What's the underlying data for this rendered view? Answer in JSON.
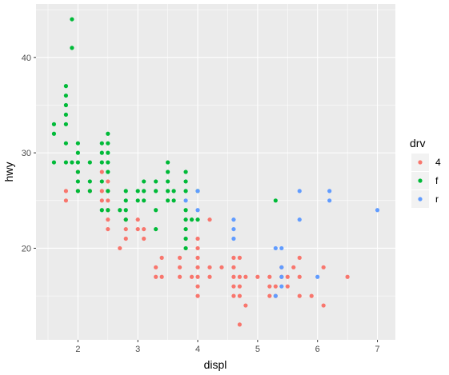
{
  "chart_data": {
    "type": "scatter",
    "xlabel": "displ",
    "ylabel": "hwy",
    "xlim": [
      1.3,
      7.3
    ],
    "ylim": [
      10.4,
      45.6
    ],
    "x_ticks": [
      2,
      3,
      4,
      5,
      6,
      7
    ],
    "y_ticks": [
      20,
      30,
      40
    ],
    "grid": true,
    "legend": {
      "title": "drv",
      "position": "right"
    },
    "series": [
      {
        "name": "4",
        "color": "#F8766D",
        "points": [
          [
            1.8,
            26
          ],
          [
            1.8,
            25
          ],
          [
            2.0,
            28
          ],
          [
            2.0,
            26
          ],
          [
            2.2,
            26
          ],
          [
            2.4,
            26
          ],
          [
            2.4,
            25
          ],
          [
            2.4,
            28
          ],
          [
            2.5,
            27
          ],
          [
            2.5,
            26
          ],
          [
            2.5,
            25
          ],
          [
            2.5,
            24
          ],
          [
            2.5,
            23
          ],
          [
            2.5,
            22
          ],
          [
            2.7,
            20
          ],
          [
            2.8,
            23
          ],
          [
            2.8,
            22
          ],
          [
            2.8,
            21
          ],
          [
            3.0,
            23
          ],
          [
            3.0,
            22
          ],
          [
            3.1,
            21
          ],
          [
            3.1,
            22
          ],
          [
            3.3,
            17
          ],
          [
            3.3,
            18
          ],
          [
            3.4,
            19
          ],
          [
            3.4,
            17
          ],
          [
            3.7,
            19
          ],
          [
            3.7,
            18
          ],
          [
            3.9,
            17
          ],
          [
            4.0,
            21
          ],
          [
            4.0,
            20
          ],
          [
            4.0,
            19
          ],
          [
            4.0,
            18
          ],
          [
            4.0,
            17
          ],
          [
            4.0,
            15
          ],
          [
            4.2,
            23
          ],
          [
            4.2,
            18
          ],
          [
            4.4,
            18
          ],
          [
            4.6,
            19
          ],
          [
            4.6,
            17
          ],
          [
            4.6,
            16
          ],
          [
            4.7,
            19
          ],
          [
            4.7,
            17
          ],
          [
            4.7,
            16
          ],
          [
            4.7,
            15
          ],
          [
            4.7,
            12
          ],
          [
            4.6,
            15
          ],
          [
            4.8,
            17
          ],
          [
            4.8,
            14
          ],
          [
            5.0,
            17
          ],
          [
            5.2,
            17
          ],
          [
            5.2,
            16
          ],
          [
            5.3,
            15
          ],
          [
            5.3,
            16
          ],
          [
            5.4,
            18
          ],
          [
            5.4,
            17
          ],
          [
            5.5,
            17
          ],
          [
            5.5,
            16
          ],
          [
            5.6,
            18
          ],
          [
            5.7,
            19
          ],
          [
            5.7,
            17
          ],
          [
            5.7,
            15
          ],
          [
            5.9,
            15
          ],
          [
            6.1,
            18
          ],
          [
            6.1,
            14
          ],
          [
            6.5,
            17
          ],
          [
            5.2,
            15
          ],
          [
            4.6,
            18
          ],
          [
            3.7,
            17
          ],
          [
            4.0,
            16
          ],
          [
            4.2,
            17
          ]
        ]
      },
      {
        "name": "f",
        "color": "#00BA38",
        "points": [
          [
            1.6,
            33
          ],
          [
            1.6,
            32
          ],
          [
            1.6,
            29
          ],
          [
            1.8,
            37
          ],
          [
            1.8,
            36
          ],
          [
            1.8,
            35
          ],
          [
            1.8,
            34
          ],
          [
            1.8,
            33
          ],
          [
            1.8,
            31
          ],
          [
            1.8,
            29
          ],
          [
            1.9,
            44
          ],
          [
            1.9,
            41
          ],
          [
            1.9,
            29
          ],
          [
            2.0,
            31
          ],
          [
            2.0,
            30
          ],
          [
            2.0,
            29
          ],
          [
            2.0,
            28
          ],
          [
            2.0,
            27
          ],
          [
            2.0,
            26
          ],
          [
            2.2,
            29
          ],
          [
            2.2,
            27
          ],
          [
            2.2,
            26
          ],
          [
            2.4,
            31
          ],
          [
            2.4,
            30
          ],
          [
            2.4,
            29
          ],
          [
            2.4,
            27
          ],
          [
            2.4,
            24
          ],
          [
            2.5,
            32
          ],
          [
            2.5,
            31
          ],
          [
            2.5,
            30
          ],
          [
            2.5,
            29
          ],
          [
            2.5,
            28
          ],
          [
            2.5,
            26
          ],
          [
            2.5,
            24
          ],
          [
            2.7,
            24
          ],
          [
            2.8,
            26
          ],
          [
            2.8,
            25
          ],
          [
            2.8,
            24
          ],
          [
            2.8,
            23
          ],
          [
            3.0,
            26
          ],
          [
            3.0,
            25
          ],
          [
            3.1,
            27
          ],
          [
            3.1,
            26
          ],
          [
            3.1,
            25
          ],
          [
            3.3,
            27
          ],
          [
            3.3,
            26
          ],
          [
            3.3,
            24
          ],
          [
            3.5,
            29
          ],
          [
            3.5,
            28
          ],
          [
            3.5,
            27
          ],
          [
            3.5,
            26
          ],
          [
            3.5,
            25
          ],
          [
            3.6,
            26
          ],
          [
            3.6,
            25
          ],
          [
            3.3,
            22
          ],
          [
            3.8,
            28
          ],
          [
            3.8,
            27
          ],
          [
            3.8,
            26
          ],
          [
            3.8,
            24
          ],
          [
            3.8,
            23
          ],
          [
            3.8,
            22
          ],
          [
            3.8,
            21
          ],
          [
            3.8,
            20
          ],
          [
            3.9,
            23
          ],
          [
            4.0,
            26
          ],
          [
            4.0,
            23
          ],
          [
            5.3,
            25
          ]
        ]
      },
      {
        "name": "r",
        "color": "#619CFF",
        "points": [
          [
            3.8,
            25
          ],
          [
            4.0,
            26
          ],
          [
            4.0,
            24
          ],
          [
            4.6,
            23
          ],
          [
            4.6,
            22
          ],
          [
            4.6,
            21
          ],
          [
            5.3,
            20
          ],
          [
            5.4,
            20
          ],
          [
            5.4,
            18
          ],
          [
            5.4,
            17
          ],
          [
            5.4,
            16
          ],
          [
            5.3,
            15
          ],
          [
            5.7,
            26
          ],
          [
            5.7,
            23
          ],
          [
            6.0,
            17
          ],
          [
            6.2,
            26
          ],
          [
            6.2,
            25
          ],
          [
            7.0,
            24
          ]
        ]
      }
    ]
  }
}
